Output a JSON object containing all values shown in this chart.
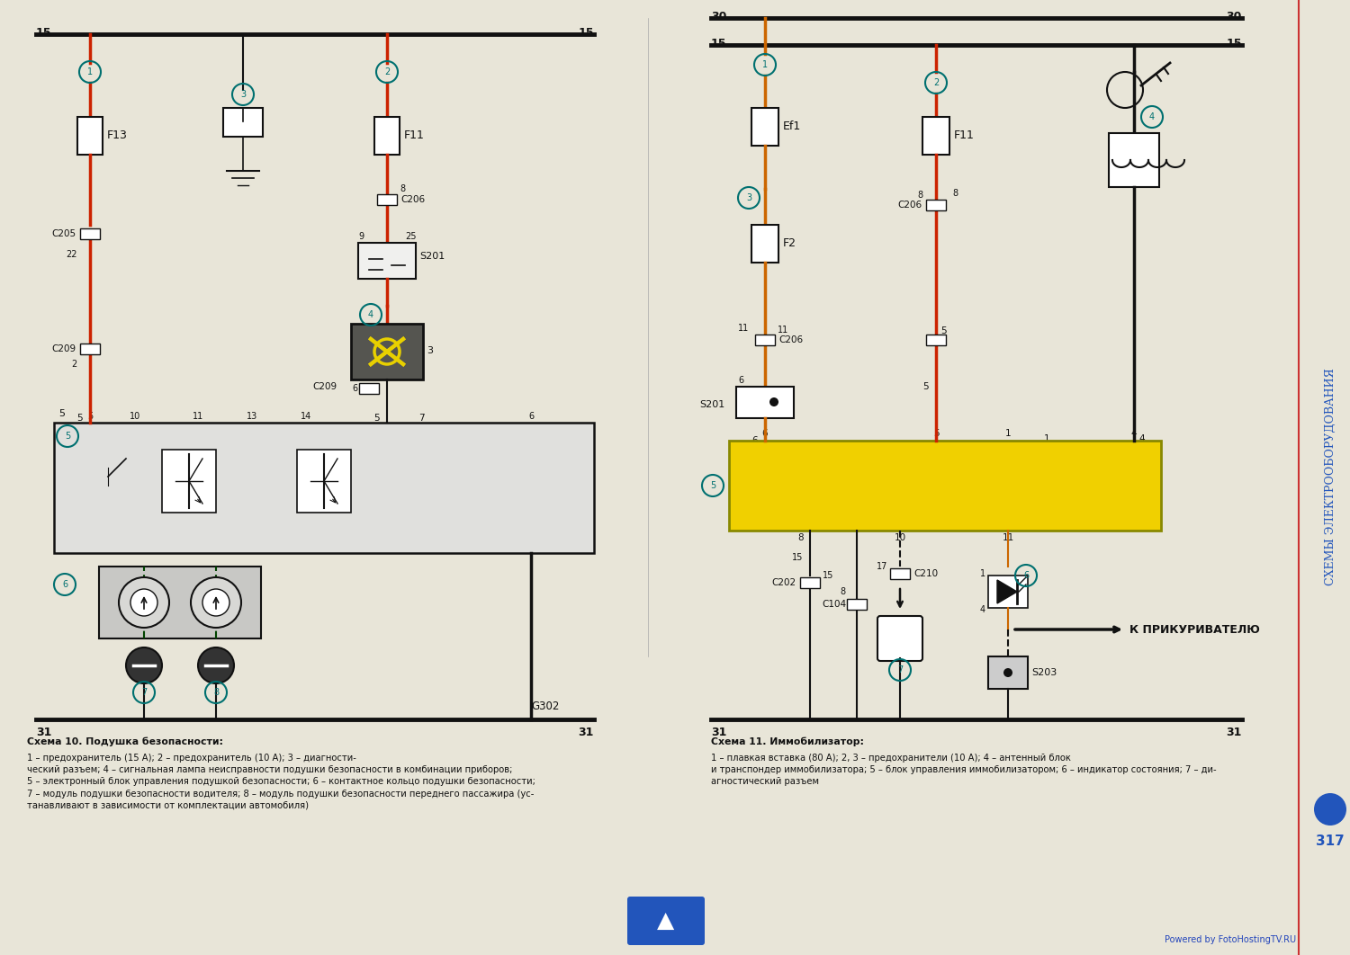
{
  "bg_color": "#d8d5cc",
  "page_color": "#e8e5d8",
  "title_schema10": "Схема 10. Подушка безопасности:",
  "desc_schema10_bold": "Схема 10. Подушка безопасности:",
  "desc_schema10": "1 – предохранитель (15 А); 2 – предохранитель (10 А); 3 – диагности-\nческий разъем; 4 – сигнальная лампа неисправности подушки безопасности в комбинации приборов;\n5 – электронный блок управления подушкой безопасности; 6 – контактное кольцо подушки безопасности;\n7 – модуль подушки безопасности водителя; 8 – модуль подушки безопасности переднего пассажира (ус-\nтанавливают в зависимости от комплектации автомобиля)",
  "title_schema11": "Схема 11. Иммобилизатор:",
  "desc_schema11": "1 – плавкая вставка (80 А); 2, 3 – предохранители (10 А); 4 – антенный блок\nи транспондер иммобилизатора; 5 – блок управления иммобилизатором; 6 – индикатор состояния; 7 – ди-\nагностический разъем",
  "side_text": "СХЕМЫ ЭЛЕКТРООБОРУДОВАНИЯ",
  "page_number": "317",
  "watermark": "Powered by FotoHostingTV.RU",
  "col_red": "#cc2200",
  "col_orange": "#cc6600",
  "col_black": "#111111",
  "col_teal": "#007070",
  "col_yellow": "#e8d000",
  "col_blue_side": "#2255bb"
}
